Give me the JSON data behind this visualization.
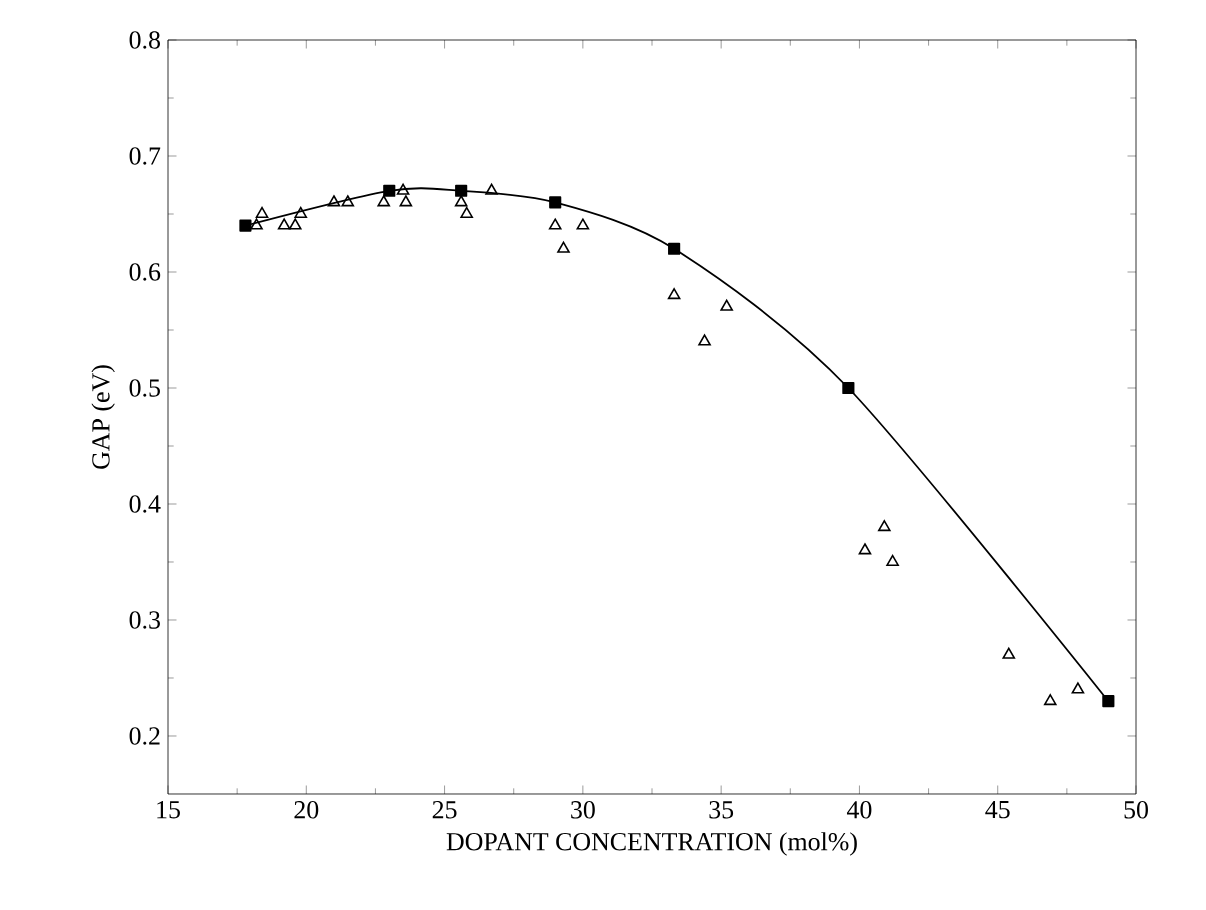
{
  "chart_data": {
    "type": "scatter",
    "xlabel": "DOPANT CONCENTRATION (mol%)",
    "ylabel": "GAP (eV)",
    "xlim": [
      15,
      50
    ],
    "xticks": [
      15,
      20,
      25,
      30,
      35,
      40,
      45,
      50
    ],
    "ylim": [
      0.15,
      0.8
    ],
    "yticks": [
      0.2,
      0.3,
      0.4,
      0.5,
      0.6,
      0.7,
      0.8
    ],
    "grid": false,
    "series": [
      {
        "type": "line",
        "marker": "square",
        "color": "#000000",
        "x": [
          17.8,
          23,
          25.6,
          29,
          33.3,
          39.6,
          49
        ],
        "values": [
          0.64,
          0.67,
          0.67,
          0.66,
          0.62,
          0.5,
          0.23
        ]
      },
      {
        "marker": "triangle",
        "color": "#000000",
        "x": [
          18.2,
          18.4,
          19.2,
          19.6,
          19.8,
          21,
          21.5,
          22.8,
          23.5,
          23.6,
          25.6,
          25.8,
          26.7,
          29,
          29.3,
          30,
          33.3,
          34.4,
          35.2,
          40.2,
          40.9,
          41.2,
          45.4,
          46.9,
          47.9
        ],
        "values": [
          0.64,
          0.65,
          0.64,
          0.64,
          0.65,
          0.66,
          0.66,
          0.66,
          0.67,
          0.66,
          0.66,
          0.65,
          0.67,
          0.64,
          0.62,
          0.64,
          0.58,
          0.54,
          0.57,
          0.36,
          0.38,
          0.35,
          0.27,
          0.23,
          0.24
        ]
      }
    ]
  }
}
